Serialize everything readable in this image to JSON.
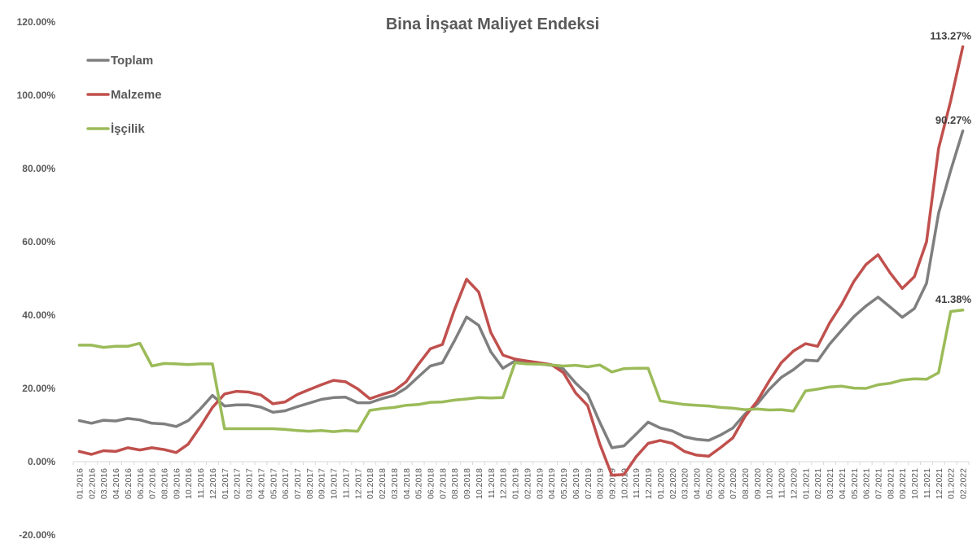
{
  "chart_data": {
    "type": "line",
    "title": "Bina İnşaat Maliyet Endeksi",
    "xlabel": "",
    "ylabel": "",
    "ylim": [
      -20,
      120
    ],
    "yticks": [
      -20,
      0,
      20,
      40,
      60,
      80,
      100,
      120
    ],
    "ytick_labels": [
      "-20.00%",
      "0.00%",
      "20.00%",
      "40.00%",
      "60.00%",
      "80.00%",
      "100.00%",
      "120.00%"
    ],
    "grid": false,
    "legend_position": "top-left",
    "categories": [
      "01.2016",
      "02.2016",
      "03.2016",
      "04.2016",
      "05.2016",
      "06.2016",
      "07.2016",
      "08.2016",
      "09.2016",
      "10.2016",
      "11.2016",
      "12.2016",
      "01.2017",
      "02.2017",
      "03.2017",
      "04.2017",
      "05.2017",
      "06.2017",
      "07.2017",
      "08.2017",
      "09.2017",
      "10.2017",
      "11.2017",
      "12.2017",
      "01.2018",
      "02.2018",
      "03.2018",
      "04.2018",
      "05.2018",
      "06.2018",
      "07.2018",
      "08.2018",
      "09.2018",
      "10.2018",
      "11.2018",
      "12.2018",
      "01.2019",
      "02.2019",
      "03.2019",
      "04.2019",
      "05.2019",
      "06.2019",
      "07.2019",
      "08.2019",
      "09.2019",
      "10.2019",
      "11.2019",
      "12.2019",
      "01.2020",
      "02.2020",
      "03.2020",
      "04.2020",
      "05.2020",
      "06.2020",
      "07.2020",
      "08.2020",
      "09.2020",
      "10.2020",
      "11.2020",
      "12.2020",
      "01.2021",
      "02.2021",
      "03.2021",
      "04.2021",
      "05.2021",
      "06.2021",
      "07.2021",
      "08.2021",
      "09.2021",
      "10.2021",
      "11.2021",
      "12.2021",
      "01.2022",
      "02.2022"
    ],
    "series": [
      {
        "name": "Toplam",
        "color": "#7f7f7f",
        "values": [
          11.2,
          10.5,
          11.3,
          11.1,
          11.8,
          11.4,
          10.5,
          10.3,
          9.6,
          11.2,
          14.4,
          18.1,
          15.2,
          15.5,
          15.5,
          14.9,
          13.5,
          13.9,
          15,
          16,
          17,
          17.5,
          17.6,
          16.1,
          16.1,
          17.2,
          18.1,
          20.1,
          23.1,
          26.1,
          27,
          33,
          39.5,
          37.2,
          30,
          25.5,
          27.5,
          27,
          26.7,
          26.3,
          25.3,
          21.5,
          18.3,
          10.8,
          3.8,
          4.3,
          7.5,
          10.8,
          9.2,
          8.4,
          6.8,
          6.1,
          5.8,
          7.3,
          9.2,
          13,
          15.7,
          19.7,
          23,
          25.1,
          27.7,
          27.5,
          32.1,
          35.9,
          39.6,
          42.5,
          44.9,
          42.2,
          39.4,
          41.8,
          48.7,
          67.8,
          79.5,
          90.27
        ]
      },
      {
        "name": "Malzeme",
        "color": "#c0504d",
        "values": [
          2.8,
          2,
          3,
          2.8,
          3.8,
          3.2,
          3.8,
          3.3,
          2.5,
          4.8,
          9.6,
          14.8,
          18.5,
          19.2,
          19,
          18.2,
          15.8,
          16.3,
          18.3,
          19.7,
          21,
          22.2,
          21.8,
          19.9,
          17.2,
          18.3,
          19.3,
          21.8,
          26.5,
          30.8,
          32,
          41.5,
          49.8,
          46.3,
          35.3,
          29.1,
          28,
          27.5,
          27,
          26.5,
          24.3,
          18.8,
          15.3,
          4.9,
          -3.7,
          -3.5,
          1.3,
          5,
          5.8,
          5,
          2.8,
          1.8,
          1.5,
          3.9,
          6.5,
          12.3,
          16.5,
          22,
          27,
          30.2,
          32.2,
          31.5,
          37.9,
          43,
          49.2,
          53.8,
          56.5,
          51.5,
          47.3,
          50.5,
          60,
          85.5,
          98.5,
          113.27
        ]
      },
      {
        "name": "İşçilik",
        "color": "#9bbb59",
        "values": [
          31.8,
          31.8,
          31.2,
          31.5,
          31.5,
          32.3,
          26.1,
          26.8,
          26.7,
          26.5,
          26.7,
          26.7,
          9,
          9,
          9,
          9,
          9,
          8.8,
          8.5,
          8.3,
          8.5,
          8.2,
          8.5,
          8.3,
          14,
          14.5,
          14.8,
          15.4,
          15.6,
          16.2,
          16.3,
          16.8,
          17.1,
          17.5,
          17.4,
          17.5,
          27,
          26.7,
          26.6,
          26.4,
          26.1,
          26.3,
          25.9,
          26.4,
          24.5,
          25.4,
          25.5,
          25.5,
          16.6,
          16.1,
          15.6,
          15.4,
          15.2,
          14.8,
          14.6,
          14.2,
          14.4,
          14.1,
          14.2,
          13.8,
          19.3,
          19.8,
          20.4,
          20.6,
          20.1,
          20,
          21,
          21.4,
          22.3,
          22.6,
          22.5,
          24.3,
          41,
          41.38
        ]
      }
    ],
    "annotations": [
      {
        "series": "Malzeme",
        "text": "113.27%"
      },
      {
        "series": "Toplam",
        "text": "90.27%"
      },
      {
        "series": "İşçilik",
        "text": "41.38%"
      }
    ]
  }
}
